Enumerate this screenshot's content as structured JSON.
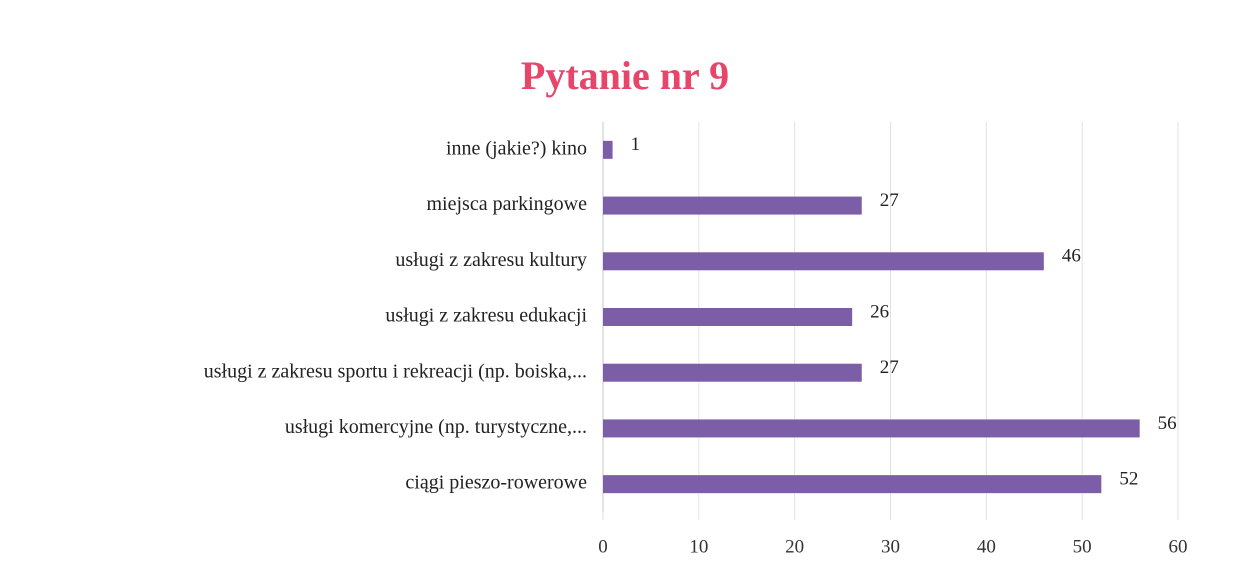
{
  "chart_data": {
    "type": "bar",
    "orientation": "horizontal",
    "title": "Pytanie nr 9",
    "categories": [
      "inne (jakie?) kino",
      "miejsca parkingowe",
      "usługi z zakresu kultury",
      "usługi z zakresu edukacji",
      "usługi z zakresu sportu i rekreacji (np. boiska,...",
      "usługi komercyjne (np. turystyczne,...",
      "ciągi pieszo-rowerowe"
    ],
    "values": [
      1,
      27,
      46,
      26,
      27,
      56,
      52
    ],
    "color": "#7b5ea7",
    "xlim": [
      0,
      60
    ],
    "xticks": [
      0,
      10,
      20,
      30,
      40,
      50,
      60
    ],
    "grid": true
  }
}
